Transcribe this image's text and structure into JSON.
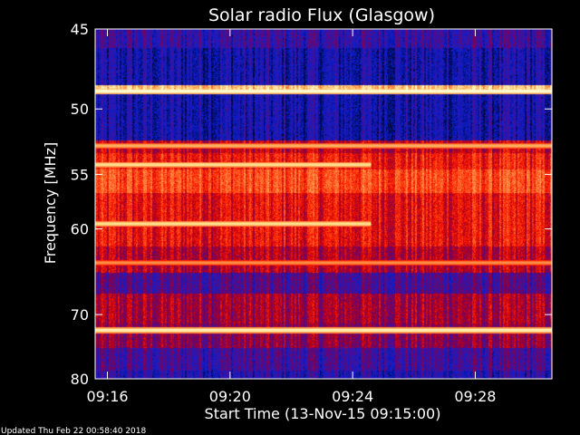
{
  "chart_data": {
    "type": "heatmap",
    "title": "Solar radio Flux (Glasgow)",
    "xlabel": "Start Time (13-Nov-15 09:15:00)",
    "ylabel": "Frequency [MHz]",
    "x_ticks": [
      "09:16",
      "09:20",
      "09:24",
      "09:28"
    ],
    "x_tick_minutes": [
      1,
      5,
      9,
      13
    ],
    "xlim_minutes": [
      0.6,
      15.5
    ],
    "y_ticks": [
      "45",
      "50",
      "55",
      "60",
      "70",
      "80"
    ],
    "y_tick_values": [
      45,
      50,
      55,
      60,
      70,
      80
    ],
    "ylim_mhz": [
      45,
      80
    ],
    "y_scale": "reciprocal",
    "colormap": [
      "#000000",
      "#000a5a",
      "#0a1ed2",
      "#3c14a0",
      "#78005a",
      "#be0014",
      "#ff1e00",
      "#ff6428",
      "#ffa050",
      "#ffdc8c",
      "#ffffdc"
    ],
    "bands": [
      {
        "from_mhz": 45,
        "to_mhz": 46.1,
        "level": 0.28
      },
      {
        "from_mhz": 46.1,
        "to_mhz": 48.4,
        "level": 0.2
      },
      {
        "from_mhz": 48.4,
        "to_mhz": 48.9,
        "level": 0.86
      },
      {
        "from_mhz": 48.9,
        "to_mhz": 52.3,
        "level": 0.2
      },
      {
        "from_mhz": 52.3,
        "to_mhz": 53.3,
        "level": 0.5
      },
      {
        "from_mhz": 53.3,
        "to_mhz": 54.6,
        "level": 0.58
      },
      {
        "from_mhz": 54.6,
        "to_mhz": 56.6,
        "level": 0.66
      },
      {
        "from_mhz": 56.6,
        "to_mhz": 61.8,
        "level": 0.56
      },
      {
        "from_mhz": 61.8,
        "to_mhz": 64.7,
        "level": 0.48
      },
      {
        "from_mhz": 64.7,
        "to_mhz": 67.3,
        "level": 0.32
      },
      {
        "from_mhz": 67.3,
        "to_mhz": 71.2,
        "level": 0.46
      },
      {
        "from_mhz": 71.2,
        "to_mhz": 74.9,
        "level": 0.42
      },
      {
        "from_mhz": 74.9,
        "to_mhz": 78.6,
        "level": 0.3
      },
      {
        "from_mhz": 78.6,
        "to_mhz": 80,
        "level": 0.24
      }
    ],
    "lines": [
      {
        "mhz": 48.8,
        "level": 0.98,
        "t_start": 0.6,
        "t_end": 15.5
      },
      {
        "mhz": 52.7,
        "level": 0.82,
        "t_start": 0.6,
        "t_end": 15.5
      },
      {
        "mhz": 54.2,
        "level": 0.9,
        "t_start": 0.6,
        "t_end": 9.6
      },
      {
        "mhz": 59.5,
        "level": 0.9,
        "t_start": 0.6,
        "t_end": 9.6
      },
      {
        "mhz": 63.6,
        "level": 0.76,
        "t_start": 0.6,
        "t_end": 15.5
      },
      {
        "mhz": 72.2,
        "level": 0.94,
        "t_start": 0.6,
        "t_end": 15.5
      }
    ]
  },
  "footer": {
    "updated": "Updated Thu Feb 22 00:58:40 2018"
  }
}
